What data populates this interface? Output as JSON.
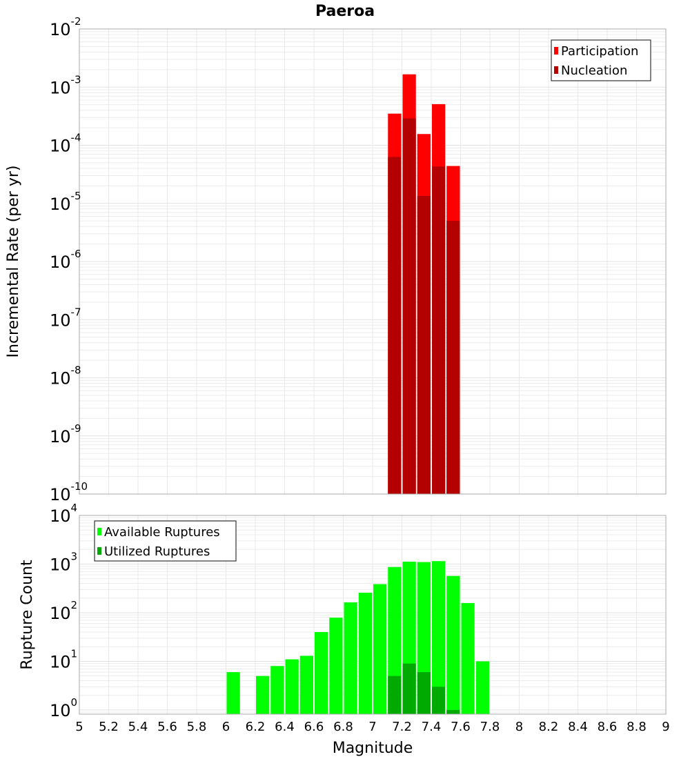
{
  "title": "Paeroa",
  "chart_data": [
    {
      "type": "bar",
      "scale": "log",
      "title": "Paeroa",
      "xlabel": "Magnitude",
      "ylabel": "Incremental Rate (per yr)",
      "xlim": [
        5,
        9
      ],
      "ylim": [
        1e-10,
        0.01
      ],
      "ytick_exponents": [
        -2,
        -3,
        -4,
        -5,
        -6,
        -7,
        -8,
        -9,
        -10
      ],
      "grid": true,
      "legend_position": "top-right",
      "bin_width": 0.1,
      "series": [
        {
          "name": "Participation",
          "color": "#ff0000",
          "x": [
            7.15,
            7.25,
            7.35,
            7.45,
            7.55
          ],
          "values": [
            0.00035,
            0.00166,
            0.000156,
            0.00051,
            4.4e-05
          ]
        },
        {
          "name": "Nucleation",
          "color": "#b30000",
          "x": [
            7.15,
            7.25,
            7.35,
            7.45,
            7.55
          ],
          "values": [
            6.3e-05,
            0.00029,
            1.34e-05,
            4.3e-05,
            5e-06
          ]
        }
      ]
    },
    {
      "type": "bar",
      "scale": "log",
      "xlabel": "Magnitude",
      "ylabel": "Rupture Count",
      "xlim": [
        5,
        9
      ],
      "ylim": [
        0.82,
        10000
      ],
      "ytick_exponents": [
        4,
        3,
        2,
        1,
        0
      ],
      "xticks": [
        "5",
        "5.2",
        "5.4",
        "5.6",
        "5.8",
        "6",
        "6.2",
        "6.4",
        "6.6",
        "6.8",
        "7",
        "7.2",
        "7.4",
        "7.6",
        "7.8",
        "8",
        "8.2",
        "8.4",
        "8.6",
        "8.8",
        "9"
      ],
      "grid": true,
      "legend_position": "top-left",
      "bin_width": 0.1,
      "series": [
        {
          "name": "Available Ruptures",
          "color": "#00ff00",
          "x": [
            6.05,
            6.25,
            6.35,
            6.45,
            6.55,
            6.65,
            6.75,
            6.85,
            6.95,
            7.05,
            7.15,
            7.25,
            7.35,
            7.45,
            7.55,
            7.65,
            7.75
          ],
          "values": [
            6,
            5,
            8,
            11,
            13,
            40,
            79,
            163,
            258,
            387,
            870,
            1120,
            1100,
            1150,
            570,
            158,
            10
          ]
        },
        {
          "name": "Utilized Ruptures",
          "color": "#00aa00",
          "x": [
            7.15,
            7.25,
            7.35,
            7.45,
            7.55
          ],
          "values": [
            5,
            9,
            6,
            3,
            1
          ]
        }
      ]
    }
  ]
}
